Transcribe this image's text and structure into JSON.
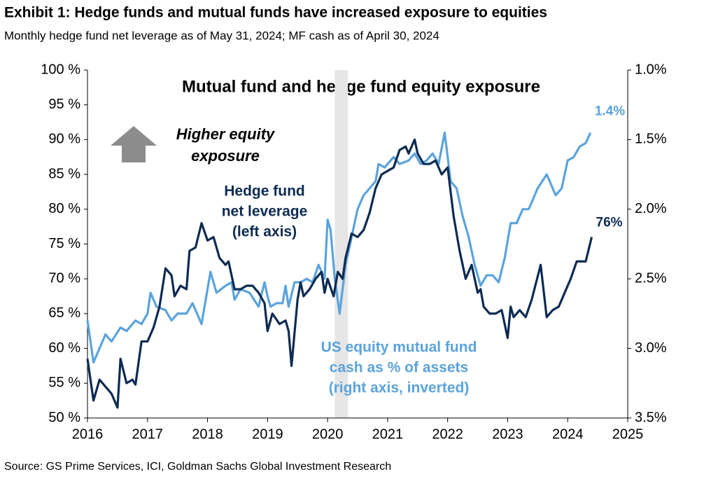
{
  "chart_data": {
    "type": "line",
    "title": "Exhibit 1: Hedge funds and mutual funds have increased exposure to equities",
    "subtitle": "Monthly hedge fund net leverage as of May 31, 2024; MF cash as of April 30, 2024",
    "inner_title": "Mutual fund and hedge fund equity exposure",
    "source": "Source: GS Prime Services, ICI, Goldman Sachs Global Investment Research",
    "arrow_text": [
      "Higher equity",
      "exposure"
    ],
    "xlim": [
      2016,
      2025
    ],
    "xticks": [
      2016,
      2017,
      2018,
      2019,
      2020,
      2021,
      2022,
      2023,
      2024,
      2025
    ],
    "ylim": [
      50,
      100
    ],
    "yticks": [
      {
        "value": 50,
        "label": "50 %"
      },
      {
        "value": 55,
        "label": "55 %"
      },
      {
        "value": 60,
        "label": "60 %"
      },
      {
        "value": 65,
        "label": "65 %"
      },
      {
        "value": 70,
        "label": "70 %"
      },
      {
        "value": 75,
        "label": "75 %"
      },
      {
        "value": 80,
        "label": "80 %"
      },
      {
        "value": 85,
        "label": "85 %"
      },
      {
        "value": 90,
        "label": "90 %"
      },
      {
        "value": 95,
        "label": "95 %"
      },
      {
        "value": 100,
        "label": "100 %"
      }
    ],
    "y2lim": [
      3.5,
      1.0
    ],
    "y2ticks": [
      {
        "value": 1.0,
        "label": "1.0%"
      },
      {
        "value": 1.5,
        "label": "1.5%"
      },
      {
        "value": 2.0,
        "label": "2.0%"
      },
      {
        "value": 2.5,
        "label": "2.5%"
      },
      {
        "value": 3.0,
        "label": "3.0%"
      },
      {
        "value": 3.5,
        "label": "3.5%"
      }
    ],
    "highlight_x": [
      2020.12,
      2020.34
    ],
    "series": [
      {
        "name": [
          "Hedge fund",
          "net leverage",
          "(left axis)"
        ],
        "color": "#0d2b52",
        "axis": "y",
        "end_label": {
          "value": 76,
          "label": "76%"
        },
        "x": [
          2016.0,
          2016.1,
          2016.2,
          2016.4,
          2016.5,
          2016.55,
          2016.65,
          2016.75,
          2016.8,
          2016.9,
          2017.0,
          2017.1,
          2017.2,
          2017.3,
          2017.4,
          2017.45,
          2017.55,
          2017.65,
          2017.7,
          2017.8,
          2017.9,
          2018.0,
          2018.1,
          2018.2,
          2018.3,
          2018.35,
          2018.45,
          2018.55,
          2018.65,
          2018.75,
          2018.85,
          2018.95,
          2019.0,
          2019.08,
          2019.2,
          2019.3,
          2019.35,
          2019.4,
          2019.5,
          2019.55,
          2019.6,
          2019.7,
          2019.8,
          2019.9,
          2019.95,
          2020.0,
          2020.1,
          2020.17,
          2020.25,
          2020.3,
          2020.4,
          2020.5,
          2020.6,
          2020.7,
          2020.8,
          2020.9,
          2021.0,
          2021.1,
          2021.2,
          2021.3,
          2021.35,
          2021.45,
          2021.5,
          2021.6,
          2021.7,
          2021.8,
          2021.9,
          2022.0,
          2022.1,
          2022.2,
          2022.3,
          2022.4,
          2022.5,
          2022.55,
          2022.6,
          2022.7,
          2022.8,
          2022.9,
          2023.0,
          2023.05,
          2023.1,
          2023.2,
          2023.3,
          2023.4,
          2023.55,
          2023.65,
          2023.75,
          2023.85,
          2023.95,
          2024.05,
          2024.15,
          2024.3,
          2024.4
        ],
        "values": [
          58.5,
          52.5,
          55.5,
          53.5,
          51.5,
          58.5,
          55,
          55.5,
          54.8,
          61,
          61,
          63,
          66,
          71.5,
          70.5,
          67.5,
          69,
          68.5,
          74,
          74.5,
          78,
          75.5,
          76,
          73,
          72,
          72.5,
          68.5,
          68.5,
          69,
          69,
          68,
          66.5,
          62.5,
          65,
          63.5,
          64,
          62.5,
          57.5,
          67,
          69.5,
          67.5,
          68.5,
          70,
          71,
          68,
          70,
          67.5,
          71,
          70,
          73,
          76.5,
          76,
          77,
          79.5,
          83,
          85,
          85.5,
          86,
          88.5,
          89,
          88,
          90,
          88,
          86.5,
          86.5,
          87,
          85,
          86,
          79,
          74,
          70,
          72,
          68,
          68.5,
          66,
          65,
          65,
          65.5,
          61.5,
          66,
          64.5,
          65.5,
          64.5,
          67,
          72,
          64.5,
          65.5,
          66,
          68,
          70,
          72.5,
          72.5,
          76
        ]
      },
      {
        "name": [
          "US equity mutual fund",
          "cash as % of assets",
          "(right axis, inverted)"
        ],
        "color": "#5ba3dc",
        "axis": "y2",
        "end_label": {
          "value": 1.4,
          "label": "1.4%"
        },
        "x": [
          2016.0,
          2016.1,
          2016.2,
          2016.3,
          2016.4,
          2016.55,
          2016.65,
          2016.8,
          2016.9,
          2017.0,
          2017.05,
          2017.15,
          2017.3,
          2017.4,
          2017.5,
          2017.65,
          2017.75,
          2017.9,
          2018.05,
          2018.15,
          2018.3,
          2018.4,
          2018.45,
          2018.55,
          2018.7,
          2018.85,
          2018.95,
          2019.0,
          2019.05,
          2019.15,
          2019.25,
          2019.3,
          2019.35,
          2019.45,
          2019.55,
          2019.65,
          2019.75,
          2019.85,
          2019.95,
          2020.0,
          2020.05,
          2020.12,
          2020.2,
          2020.3,
          2020.4,
          2020.5,
          2020.6,
          2020.7,
          2020.8,
          2020.85,
          2020.95,
          2021.1,
          2021.2,
          2021.35,
          2021.45,
          2021.55,
          2021.65,
          2021.75,
          2021.85,
          2021.95,
          2022.05,
          2022.15,
          2022.25,
          2022.35,
          2022.45,
          2022.55,
          2022.65,
          2022.75,
          2022.85,
          2022.95,
          2023.05,
          2023.15,
          2023.25,
          2023.35,
          2023.5,
          2023.65,
          2023.8,
          2023.9,
          2024.0,
          2024.1,
          2024.2,
          2024.3,
          2024.38
        ],
        "values": [
          2.8,
          3.1,
          3.0,
          2.9,
          2.95,
          2.85,
          2.875,
          2.8,
          2.825,
          2.75,
          2.6,
          2.7,
          2.725,
          2.8,
          2.75,
          2.75,
          2.675,
          2.825,
          2.45,
          2.6,
          2.55,
          2.525,
          2.65,
          2.575,
          2.6,
          2.7,
          2.525,
          2.625,
          2.7,
          2.675,
          2.675,
          2.55,
          2.7,
          2.525,
          2.525,
          2.5,
          2.525,
          2.4,
          2.5,
          2.075,
          2.15,
          2.5,
          2.75,
          2.4,
          2.2,
          2.0,
          1.9,
          1.85,
          1.8,
          1.675,
          1.7,
          1.625,
          1.675,
          1.65,
          1.6,
          1.675,
          1.65,
          1.6,
          1.675,
          1.45,
          1.8,
          1.85,
          2.05,
          2.2,
          2.4,
          2.55,
          2.475,
          2.475,
          2.525,
          2.35,
          2.1,
          2.1,
          2.0,
          2.0,
          1.85,
          1.75,
          1.9,
          1.85,
          1.65,
          1.625,
          1.55,
          1.525,
          1.45
        ]
      }
    ]
  }
}
